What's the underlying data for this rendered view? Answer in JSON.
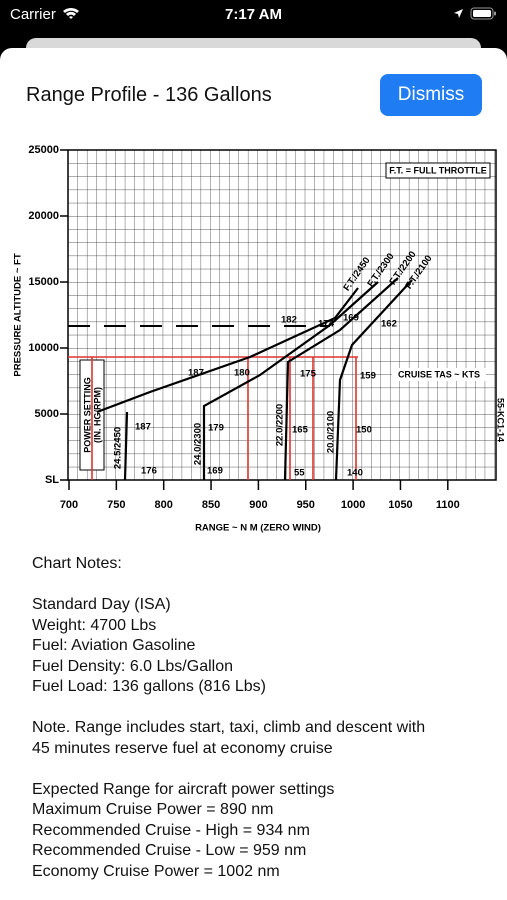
{
  "status_bar": {
    "carrier": "Carrier",
    "time": "7:17 AM"
  },
  "header": {
    "title": "Range Profile - 136 Gallons",
    "button": "Dismiss"
  },
  "chart": {
    "xticks": [
      700,
      750,
      800,
      850,
      900,
      950,
      1000,
      1050,
      1100
    ],
    "yticks": [
      {
        "value": 0,
        "label": "SL"
      },
      5000,
      10000,
      15000,
      20000,
      25000
    ],
    "x_label": "RANGE ~ N M (ZERO WIND)",
    "y_label": "PRESSURE ALTITUDE ~ FT",
    "annotations": [
      "F.T. = FULL THROTTLE",
      "CRUISE TAS ~ KTS",
      "POWER SETTING",
      "(IN. HG/RPM)",
      "55-KC1-14"
    ],
    "curve_labels": [
      "F.T./2450",
      "F.T./2300",
      "F.T./2200",
      "F.T./2100"
    ],
    "power_labels": [
      "24.5/2450",
      "24.0/2300",
      "22.0/2200",
      "20.0/2100"
    ],
    "tas_labels": [
      182,
      174,
      169,
      162,
      187,
      180,
      175,
      159,
      187,
      179,
      165,
      150,
      176,
      169,
      55,
      140
    ]
  },
  "notes": {
    "title": "Chart Notes:",
    "conditions": [
      "Standard Day (ISA)",
      "Weight: 4700 Lbs",
      "Fuel: Aviation Gasoline",
      "Fuel Density: 6.0 Lbs/Gallon",
      "Fuel Load: 136 gallons (816 Lbs)"
    ],
    "note": [
      "Note. Range includes start, taxi, climb and descent with",
      "45 minutes reserve fuel at economy cruise"
    ],
    "range_heading": "Expected Range for aircraft power settings",
    "ranges": [
      "Maximum Cruise Power = 890 nm",
      "Recommended Cruise - High = 934 nm",
      "Recommended Cruise - Low = 959 nm",
      "Economy Cruise Power = 1002 nm"
    ]
  }
}
